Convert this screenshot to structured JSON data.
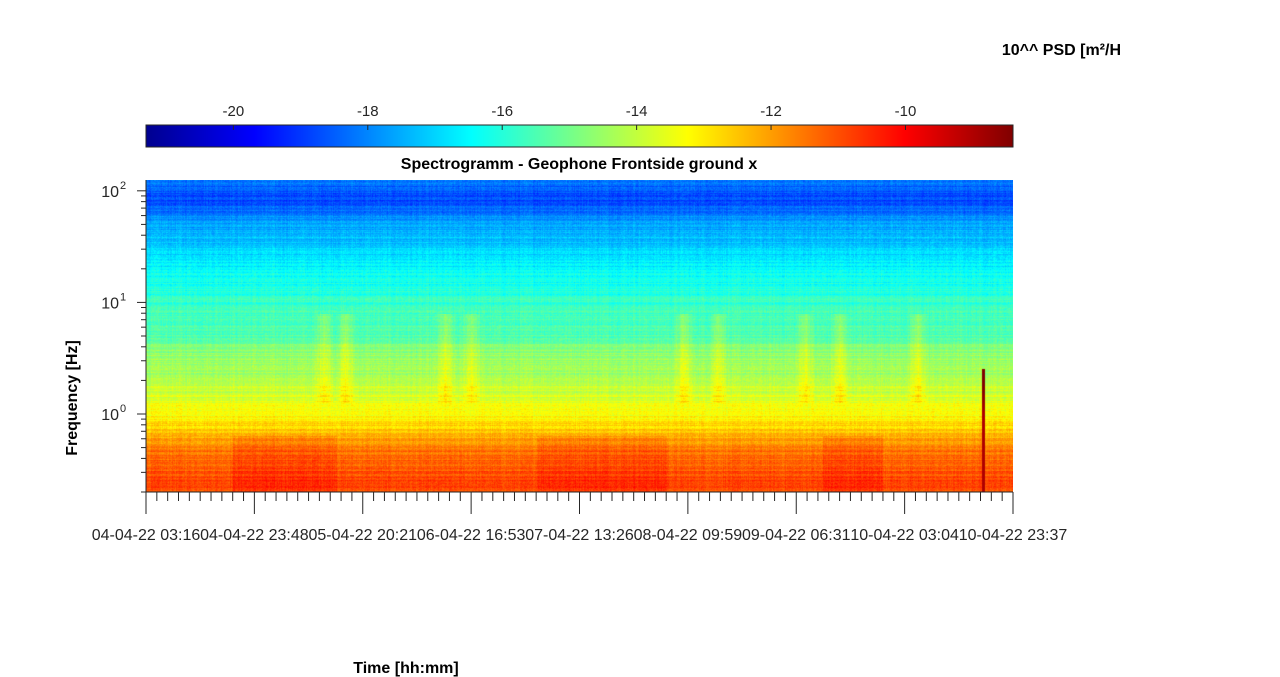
{
  "chart_data": {
    "type": "heatmap",
    "title": "Spectrogramm - Geophone Frontside ground x",
    "xlabel": "Time [hh:mm]",
    "ylabel": "Frequency [Hz]",
    "colorbar_label": "10^^ PSD [m²/H",
    "colormap": "jet",
    "y_scale": "log",
    "ylim": [
      0.2,
      125
    ],
    "clim": [
      -21.3,
      -8.4
    ],
    "colorbar_ticks": [
      "-20",
      "-18",
      "-16",
      "-14",
      "-12",
      "-10"
    ],
    "colorbar_tick_values": [
      -20,
      -18,
      -16,
      -14,
      -12,
      -10
    ],
    "x_tick_labels": [
      "04-04-22  03:16",
      "04-04-22  23:48",
      "05-04-22  20:21",
      "06-04-22  16:53",
      "07-04-22  13:26",
      "08-04-22  09:59",
      "09-04-22  06:31",
      "10-04-22  03:04",
      "10-04-22  23:37"
    ],
    "y_tick_labels": [
      {
        "base": "10",
        "exp": "2",
        "value": 100
      },
      {
        "base": "10",
        "exp": "1",
        "value": 10
      },
      {
        "base": "10",
        "exp": "0",
        "value": 1
      }
    ],
    "psd_profile": {
      "frequency_hz": [
        0.2,
        0.3,
        0.5,
        0.65,
        1,
        2,
        4,
        5,
        5.8,
        7,
        10,
        20,
        50,
        80,
        100,
        125
      ],
      "log10_psd": [
        -10.8,
        -11.1,
        -11.5,
        -12.4,
        -13.3,
        -14.2,
        -14.8,
        -15.4,
        -15.6,
        -15.5,
        -15.8,
        -16.5,
        -17.6,
        -18.8,
        -18.6,
        -18.2
      ]
    },
    "transient_event": {
      "time": "10-04-22 ~17:00",
      "log10_psd": -9.0
    }
  }
}
